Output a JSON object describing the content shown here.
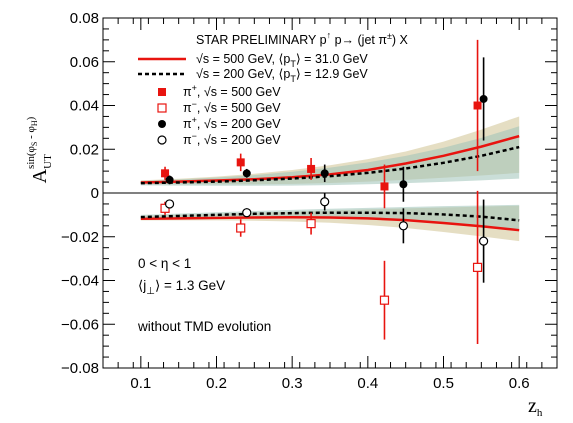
{
  "chart_data": {
    "type": "scatter",
    "title": "STAR PRELIMINARY p↑ p→ (jet π±) X",
    "xlabel": "z_h",
    "ylabel": "A_UT^sin(φ_S - φ_H)",
    "xlim": [
      0.05,
      0.65
    ],
    "ylim": [
      -0.08,
      0.08
    ],
    "x_ticks": [
      0.1,
      0.2,
      0.3,
      0.4,
      0.5,
      0.6
    ],
    "x_tick_labels": [
      "0.1",
      "0.2",
      "0.3",
      "0.4",
      "0.5",
      "0.6"
    ],
    "y_ticks": [
      -0.08,
      -0.06,
      -0.04,
      -0.02,
      0,
      0.02,
      0.04,
      0.06,
      0.08
    ],
    "y_tick_labels": [
      "−0.08",
      "−0.06",
      "−0.04",
      "−0.02",
      "0",
      "0.02",
      "0.04",
      "0.06",
      "0.08"
    ],
    "legend_position": "top",
    "zero_line": true,
    "colors": {
      "red": "#e8140f",
      "black": "#000000",
      "band_500": "#cfc391",
      "band_200": "#9fc2b8"
    },
    "annotations": {
      "eta": "0 < η < 1",
      "jt_pre": "⟨j",
      "jt_sub": "⊥",
      "jt_post": "⟩ = 1.3 GeV",
      "evolution": "without TMD evolution"
    },
    "curves": [
      {
        "label": "√s = 500 GeV,  ⟨p_T⟩ = 31.0 GeV",
        "label_parts": {
          "pre": "√s = 500 GeV,  ⟨p",
          "sub": "T",
          "post": "⟩ = 31.0 GeV"
        },
        "style": "solid",
        "color": "#e8140f",
        "x": [
          0.1,
          0.15,
          0.2,
          0.25,
          0.3,
          0.35,
          0.4,
          0.45,
          0.5,
          0.55,
          0.6
        ],
        "y_pos": [
          0.0048,
          0.0052,
          0.0057,
          0.0063,
          0.0072,
          0.0085,
          0.0105,
          0.0135,
          0.017,
          0.0212,
          0.026
        ],
        "y_neg": [
          -0.0118,
          -0.0116,
          -0.0114,
          -0.0112,
          -0.0111,
          -0.0112,
          -0.0116,
          -0.0124,
          -0.0137,
          -0.0152,
          -0.017
        ],
        "band_pos_lower": [
          0.004,
          0.004,
          0.004,
          0.004,
          0.0042,
          0.0046,
          0.0052,
          0.006,
          0.007,
          0.008,
          0.0092
        ],
        "band_pos_upper": [
          0.0058,
          0.0065,
          0.0075,
          0.0088,
          0.0105,
          0.0127,
          0.0155,
          0.019,
          0.0235,
          0.029,
          0.035
        ],
        "band_neg_lower": [
          -0.0125,
          -0.0125,
          -0.0125,
          -0.0127,
          -0.013,
          -0.0136,
          -0.0146,
          -0.016,
          -0.0178,
          -0.0198,
          -0.022
        ],
        "band_neg_upper": [
          -0.0105,
          -0.01,
          -0.0095,
          -0.009,
          -0.0085,
          -0.008,
          -0.0075,
          -0.007,
          -0.0066,
          -0.0062,
          -0.0058
        ]
      },
      {
        "label": "√s = 200 GeV,  ⟨p_T⟩ = 12.9 GeV",
        "label_parts": {
          "pre": "√s = 200 GeV,  ⟨p",
          "sub": "T",
          "post": "⟩ = 12.9 GeV"
        },
        "style": "dashed",
        "color": "#000000",
        "x": [
          0.1,
          0.15,
          0.2,
          0.25,
          0.3,
          0.35,
          0.4,
          0.45,
          0.5,
          0.55,
          0.6
        ],
        "y_pos": [
          0.0045,
          0.0048,
          0.0052,
          0.0058,
          0.0066,
          0.0077,
          0.0092,
          0.0112,
          0.0138,
          0.017,
          0.021
        ],
        "y_neg": [
          -0.011,
          -0.0105,
          -0.01,
          -0.0095,
          -0.0092,
          -0.009,
          -0.009,
          -0.0092,
          -0.0098,
          -0.0108,
          -0.0125
        ],
        "band_pos_lower": [
          0.0035,
          0.0034,
          0.0033,
          0.0033,
          0.0034,
          0.0036,
          0.004,
          0.0045,
          0.0051,
          0.0058,
          0.0066
        ],
        "band_pos_upper": [
          0.0055,
          0.0062,
          0.0071,
          0.0082,
          0.0097,
          0.0116,
          0.014,
          0.017,
          0.0207,
          0.0252,
          0.0305
        ],
        "band_neg_lower": [
          -0.012,
          -0.0118,
          -0.0116,
          -0.0114,
          -0.0114,
          -0.0116,
          -0.012,
          -0.0127,
          -0.0138,
          -0.0153,
          -0.0172
        ],
        "band_neg_upper": [
          -0.01,
          -0.0094,
          -0.0088,
          -0.0082,
          -0.0077,
          -0.0072,
          -0.0068,
          -0.0064,
          -0.006,
          -0.0057,
          -0.0054
        ]
      }
    ],
    "series": [
      {
        "name": "π⁺, √s = 500 GeV",
        "label_parts": {
          "pi": "π",
          "sup": "+",
          "rest": ", √s = 500 GeV"
        },
        "marker": "square-filled",
        "color": "#e8140f",
        "x": [
          0.132,
          0.232,
          0.325,
          0.422,
          0.545
        ],
        "y": [
          0.009,
          0.014,
          0.011,
          0.003,
          0.04
        ],
        "err": [
          0.003,
          0.004,
          0.005,
          0.01,
          0.03
        ]
      },
      {
        "name": "π⁻, √s = 500 GeV",
        "label_parts": {
          "pi": "π",
          "sup": "−",
          "rest": ", √s = 500 GeV"
        },
        "marker": "square-open",
        "color": "#e8140f",
        "x": [
          0.132,
          0.232,
          0.325,
          0.422,
          0.545
        ],
        "y": [
          -0.007,
          -0.016,
          -0.014,
          -0.049,
          -0.034
        ],
        "err": [
          0.003,
          0.004,
          0.005,
          0.018,
          0.035
        ]
      },
      {
        "name": "π⁺, √s = 200 GeV",
        "label_parts": {
          "pi": "π",
          "sup": "+",
          "rest": ", √s = 200 GeV"
        },
        "marker": "circle-filled",
        "color": "#000000",
        "x": [
          0.138,
          0.24,
          0.343,
          0.447,
          0.553
        ],
        "y": [
          0.006,
          0.009,
          0.009,
          0.004,
          0.043
        ],
        "err": [
          0.002,
          0.002,
          0.004,
          0.008,
          0.019
        ]
      },
      {
        "name": "π⁻, √s = 200 GeV",
        "label_parts": {
          "pi": "π",
          "sup": "−",
          "rest": ", √s = 200 GeV"
        },
        "marker": "circle-open",
        "color": "#000000",
        "x": [
          0.138,
          0.24,
          0.343,
          0.447,
          0.553
        ],
        "y": [
          -0.005,
          -0.009,
          -0.004,
          -0.015,
          -0.022
        ],
        "err": [
          0.002,
          0.002,
          0.004,
          0.008,
          0.019
        ]
      }
    ]
  }
}
